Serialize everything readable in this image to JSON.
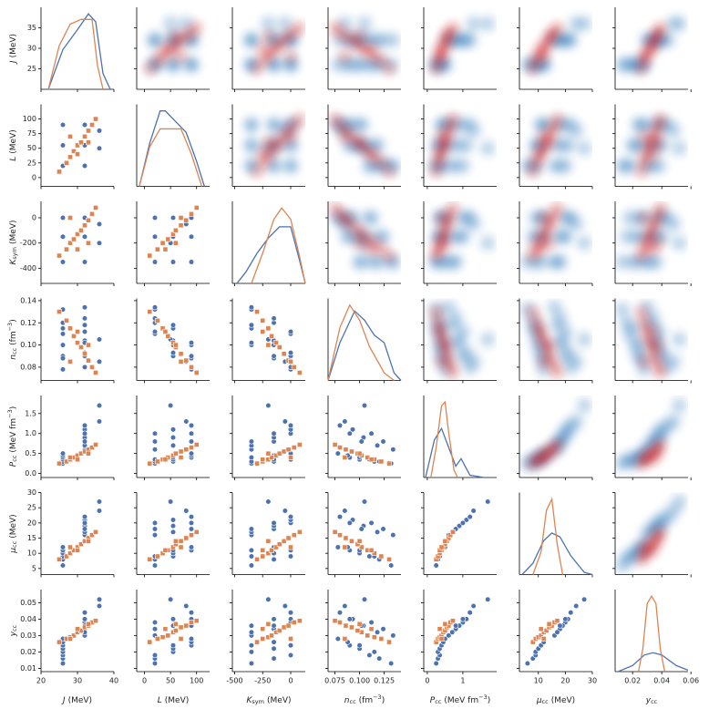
{
  "chart_data": {
    "type": "pairplot",
    "variables": [
      {
        "symbol": "J",
        "unit": [
          "(MeV)"
        ],
        "lim": [
          20,
          40
        ],
        "xticks": [
          20,
          30,
          40
        ],
        "yticks": [
          25,
          30,
          35
        ]
      },
      {
        "symbol": "L",
        "unit": [
          "(MeV)"
        ],
        "lim": [
          -15,
          125
        ],
        "xticks": [
          0,
          50,
          100
        ],
        "yticks": [
          0,
          25,
          50,
          75,
          100
        ]
      },
      {
        "symbol": "K",
        "sub": "sym",
        "unit": [
          "(MeV)"
        ],
        "lim": [
          -520,
          130
        ],
        "xticks": [
          -500,
          -250,
          0
        ],
        "yticks": [
          -400,
          -200,
          0
        ]
      },
      {
        "symbol": "n",
        "sub": "cc",
        "unit": [
          "(fm",
          "−3",
          ")"
        ],
        "lim": [
          0.068,
          0.142
        ],
        "xticks": [
          0.075,
          {
            "value": 0.1,
            "label": "0.100"
          },
          0.125
        ],
        "yticks": [
          0.08,
          {
            "value": 0.1,
            "label": "0.10"
          },
          0.12,
          0.14
        ]
      },
      {
        "symbol": "P",
        "sub": "cc",
        "unit": [
          "(MeV fm",
          "−3",
          ")"
        ],
        "lim": [
          -0.1,
          1.95
        ],
        "xticks": [
          0,
          1
        ],
        "yticks": [
          {
            "value": 0,
            "label": "0.0"
          },
          0.5,
          {
            "value": 1,
            "label": "1.0"
          },
          1.5
        ]
      },
      {
        "symbol": "μ",
        "sub": "cc",
        "unit": [
          "(MeV)"
        ],
        "lim": [
          3,
          30
        ],
        "xticks": [
          10,
          20,
          30
        ],
        "yticks": [
          5,
          10,
          15,
          20,
          25,
          30
        ]
      },
      {
        "symbol": "y",
        "sub": "cc",
        "unit": [],
        "lim": [
          0.008,
          0.058
        ],
        "xticks": [
          0.02,
          0.04,
          0.06
        ],
        "yticks": [
          0.01,
          0.02,
          0.03,
          0.04,
          0.05
        ]
      }
    ],
    "series": [
      {
        "color": "#4c72b0",
        "kde_color": "#2171b5",
        "marker": "circle",
        "values": [
          [
            26,
            26,
            26,
            26,
            26,
            26,
            26,
            26,
            26,
            32,
            32,
            32,
            32,
            32,
            32,
            32,
            32,
            32,
            36,
            36
          ],
          [
            20,
            20,
            20,
            55,
            55,
            55,
            90,
            90,
            90,
            20,
            20,
            20,
            55,
            55,
            55,
            90,
            90,
            90,
            50,
            80
          ],
          [
            -350,
            -150,
            0,
            -350,
            -150,
            0,
            -350,
            -150,
            0,
            -350,
            -150,
            0,
            -350,
            -150,
            0,
            -350,
            -150,
            0,
            -200,
            -50
          ],
          [
            0.132,
            0.12,
            0.11,
            0.115,
            0.1,
            0.09,
            0.1,
            0.088,
            0.078,
            0.134,
            0.124,
            0.112,
            0.118,
            0.104,
            0.093,
            0.102,
            0.09,
            0.08,
            0.105,
            0.085
          ],
          [
            0.25,
            0.3,
            0.35,
            0.3,
            0.35,
            0.4,
            0.4,
            0.45,
            0.5,
            0.6,
            0.8,
            1.0,
            0.7,
            0.9,
            1.1,
            0.8,
            1.0,
            1.2,
            1.7,
            1.3
          ],
          [
            6,
            8,
            9,
            9,
            10,
            11,
            11,
            12,
            12,
            16,
            18,
            20,
            17,
            19,
            21,
            18,
            20,
            22,
            27,
            24
          ],
          [
            0.013,
            0.016,
            0.018,
            0.02,
            0.022,
            0.024,
            0.024,
            0.026,
            0.028,
            0.03,
            0.034,
            0.038,
            0.032,
            0.036,
            0.04,
            0.036,
            0.04,
            0.044,
            0.052,
            0.048
          ]
        ],
        "density": [
          {
            "x": [
              22,
              26,
              30,
              33,
              35,
              37,
              39
            ],
            "y": [
              0,
              0.5,
              0.75,
              0.95,
              0.85,
              0.2,
              0
            ]
          },
          {
            "x": [
              -10,
              10,
              30,
              40,
              60,
              80,
              100,
              115
            ],
            "y": [
              0,
              0.6,
              1.05,
              1.05,
              0.9,
              0.75,
              0.35,
              0
            ]
          },
          {
            "x": [
              -480,
              -400,
              -300,
              -200,
              -100,
              0,
              80,
              130
            ],
            "y": [
              0,
              0.15,
              0.4,
              0.6,
              0.75,
              0.75,
              0.3,
              0
            ]
          },
          {
            "x": [
              0.068,
              0.08,
              0.095,
              0.105,
              0.115,
              0.125,
              0.135,
              0.142
            ],
            "y": [
              0,
              0.5,
              0.92,
              0.8,
              0.6,
              0.5,
              0.1,
              0
            ]
          },
          {
            "x": [
              -0.05,
              0.2,
              0.4,
              0.6,
              0.8,
              0.95,
              1.2,
              1.6
            ],
            "y": [
              0,
              0.5,
              0.65,
              0.4,
              0.15,
              0.25,
              0.03,
              0
            ]
          },
          {
            "x": [
              4,
              8,
              12,
              15,
              18,
              22,
              27,
              30
            ],
            "y": [
              0,
              0.15,
              0.45,
              0.55,
              0.5,
              0.25,
              0.03,
              0
            ]
          },
          {
            "x": [
              0.01,
              0.02,
              0.028,
              0.034,
              0.04,
              0.05,
              0.058
            ],
            "y": [
              0,
              0.08,
              0.22,
              0.25,
              0.22,
              0.08,
              0.02
            ]
          }
        ]
      },
      {
        "color": "#dd8452",
        "kde_color": "#cb181d",
        "marker": "square",
        "values": [
          [
            25,
            27,
            28,
            29,
            30,
            31,
            32,
            33,
            34,
            35,
            30,
            33,
            28
          ],
          [
            10,
            25,
            35,
            45,
            55,
            60,
            70,
            80,
            90,
            100,
            40,
            60,
            70
          ],
          [
            -300,
            -250,
            -200,
            -170,
            -130,
            -100,
            -60,
            -20,
            30,
            80,
            -250,
            -200,
            0
          ],
          [
            0.13,
            0.122,
            0.115,
            0.108,
            0.102,
            0.098,
            0.092,
            0.086,
            0.08,
            0.075,
            0.112,
            0.1,
            0.085
          ],
          [
            0.25,
            0.3,
            0.35,
            0.4,
            0.45,
            0.5,
            0.55,
            0.6,
            0.65,
            0.72,
            0.35,
            0.5,
            0.4
          ],
          [
            8,
            9,
            10,
            11,
            12,
            13,
            14,
            15,
            16,
            17,
            11,
            14,
            12
          ],
          [
            0.026,
            0.028,
            0.029,
            0.03,
            0.032,
            0.033,
            0.035,
            0.036,
            0.038,
            0.039,
            0.034,
            0.037,
            0.028
          ]
        ],
        "density": [
          {
            "x": [
              22,
              25,
              28,
              31,
              34,
              35.5,
              37
            ],
            "y": [
              0,
              0.55,
              0.82,
              0.88,
              0.88,
              0.3,
              0
            ]
          },
          {
            "x": [
              -10,
              10,
              30,
              45,
              70,
              90,
              110
            ],
            "y": [
              0,
              0.55,
              0.8,
              0.8,
              0.8,
              0.45,
              0
            ]
          },
          {
            "x": [
              -350,
              -250,
              -150,
              -80,
              0,
              80,
              130
            ],
            "y": [
              0,
              0.4,
              0.85,
              1.0,
              0.85,
              0.35,
              0
            ]
          },
          {
            "x": [
              0.068,
              0.08,
              0.09,
              0.1,
              0.11,
              0.125,
              0.135
            ],
            "y": [
              0,
              0.7,
              1.0,
              0.8,
              0.45,
              0.1,
              0
            ]
          },
          {
            "x": [
              0.1,
              0.25,
              0.4,
              0.5,
              0.6,
              0.75,
              0.85
            ],
            "y": [
              0,
              0.4,
              0.95,
              1.0,
              0.6,
              0.1,
              0
            ]
          },
          {
            "x": [
              8,
              11,
              13,
              15,
              17,
              19
            ],
            "y": [
              0,
              0.3,
              0.85,
              1.0,
              0.4,
              0
            ]
          },
          {
            "x": [
              0.024,
              0.027,
              0.03,
              0.033,
              0.036,
              0.039,
              0.042
            ],
            "y": [
              0,
              0.3,
              0.9,
              1.0,
              0.9,
              0.3,
              0
            ]
          }
        ]
      }
    ]
  }
}
